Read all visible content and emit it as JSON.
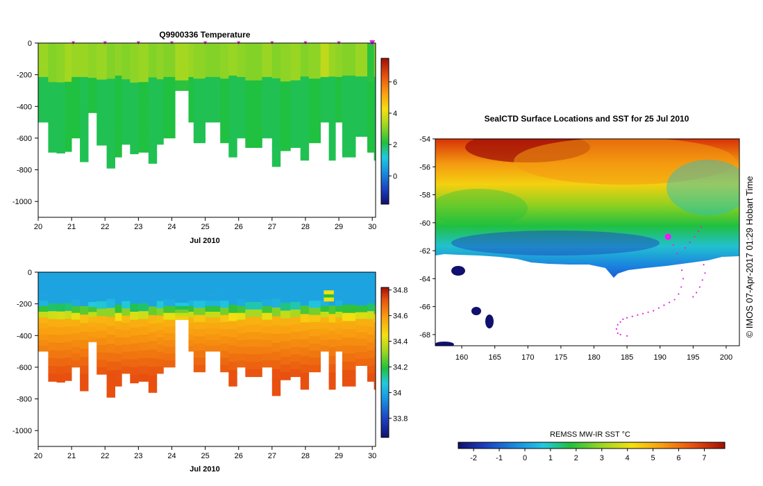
{
  "chart_data": [
    {
      "type": "heatmap",
      "title": "Q9900336  Temperature",
      "xlabel": "Jul 2010",
      "ylabel": "",
      "xlim": [
        20,
        30.1
      ],
      "ylim": [
        -1100,
        0
      ],
      "xticks": [
        20,
        21,
        22,
        23,
        24,
        25,
        26,
        27,
        28,
        29,
        30
      ],
      "yticks": [
        0,
        -200,
        -400,
        -600,
        -800,
        -1000
      ],
      "colorbar": {
        "min": -1.8,
        "max": 7.5,
        "ticks": [
          0,
          2,
          4,
          6
        ]
      },
      "profile_markers": [
        21.05,
        22.0,
        23.0,
        24.0,
        25.0,
        26.0,
        27.0,
        28.0,
        29.0,
        30.0
      ],
      "columns": [
        {
          "x0": 20.0,
          "x1": 20.3,
          "depth": 500,
          "surface": 3.2,
          "deep": 2.0
        },
        {
          "x0": 20.3,
          "x1": 20.55,
          "depth": 690,
          "surface": 3.0,
          "deep": 2.0
        },
        {
          "x0": 20.55,
          "x1": 20.8,
          "depth": 695,
          "surface": 3.1,
          "deep": 2.0
        },
        {
          "x0": 20.8,
          "x1": 21.0,
          "depth": 685,
          "surface": 3.3,
          "deep": 2.1
        },
        {
          "x0": 21.0,
          "x1": 21.25,
          "depth": 600,
          "surface": 3.2,
          "deep": 2.1
        },
        {
          "x0": 21.25,
          "x1": 21.5,
          "depth": 750,
          "surface": 3.2,
          "deep": 2.0
        },
        {
          "x0": 21.5,
          "x1": 21.75,
          "depth": 440,
          "surface": 3.1,
          "deep": 2.1
        },
        {
          "x0": 21.75,
          "x1": 22.05,
          "depth": 645,
          "surface": 3.2,
          "deep": 2.0
        },
        {
          "x0": 22.05,
          "x1": 22.3,
          "depth": 790,
          "surface": 3.0,
          "deep": 2.0
        },
        {
          "x0": 22.3,
          "x1": 22.5,
          "depth": 720,
          "surface": 3.1,
          "deep": 2.1
        },
        {
          "x0": 22.5,
          "x1": 22.75,
          "depth": 640,
          "surface": 3.0,
          "deep": 2.0
        },
        {
          "x0": 22.75,
          "x1": 23.0,
          "depth": 700,
          "surface": 3.1,
          "deep": 2.0
        },
        {
          "x0": 23.0,
          "x1": 23.3,
          "depth": 690,
          "surface": 3.2,
          "deep": 2.1
        },
        {
          "x0": 23.3,
          "x1": 23.55,
          "depth": 760,
          "surface": 3.0,
          "deep": 2.0
        },
        {
          "x0": 23.55,
          "x1": 23.75,
          "depth": 640,
          "surface": 3.1,
          "deep": 2.0
        },
        {
          "x0": 23.75,
          "x1": 24.1,
          "depth": 600,
          "surface": 3.0,
          "deep": 2.1
        },
        {
          "x0": 24.1,
          "x1": 24.5,
          "depth": 300,
          "surface": 3.3,
          "deep": 2.2
        },
        {
          "x0": 24.5,
          "x1": 24.65,
          "depth": 500,
          "surface": 3.2,
          "deep": 2.1
        },
        {
          "x0": 24.65,
          "x1": 25.0,
          "depth": 630,
          "surface": 3.1,
          "deep": 2.0
        },
        {
          "x0": 25.0,
          "x1": 25.45,
          "depth": 500,
          "surface": 3.0,
          "deep": 2.0
        },
        {
          "x0": 25.45,
          "x1": 25.7,
          "depth": 630,
          "surface": 3.1,
          "deep": 2.1
        },
        {
          "x0": 25.7,
          "x1": 25.95,
          "depth": 720,
          "surface": 3.2,
          "deep": 2.0
        },
        {
          "x0": 25.95,
          "x1": 26.2,
          "depth": 600,
          "surface": 3.1,
          "deep": 2.0
        },
        {
          "x0": 26.2,
          "x1": 26.7,
          "depth": 660,
          "surface": 3.0,
          "deep": 2.1
        },
        {
          "x0": 26.7,
          "x1": 27.0,
          "depth": 600,
          "surface": 3.2,
          "deep": 2.0
        },
        {
          "x0": 27.0,
          "x1": 27.25,
          "depth": 780,
          "surface": 3.0,
          "deep": 2.0
        },
        {
          "x0": 27.25,
          "x1": 27.55,
          "depth": 680,
          "surface": 3.1,
          "deep": 2.1
        },
        {
          "x0": 27.55,
          "x1": 27.85,
          "depth": 660,
          "surface": 3.2,
          "deep": 2.0
        },
        {
          "x0": 27.85,
          "x1": 28.1,
          "depth": 740,
          "surface": 3.0,
          "deep": 2.0
        },
        {
          "x0": 28.1,
          "x1": 28.45,
          "depth": 630,
          "surface": 3.1,
          "deep": 2.1
        },
        {
          "x0": 28.45,
          "x1": 28.7,
          "depth": 500,
          "surface": 3.6,
          "deep": 2.0
        },
        {
          "x0": 28.7,
          "x1": 28.9,
          "depth": 740,
          "surface": 3.2,
          "deep": 2.0
        },
        {
          "x0": 28.9,
          "x1": 29.1,
          "depth": 500,
          "surface": 3.1,
          "deep": 2.1
        },
        {
          "x0": 29.1,
          "x1": 29.5,
          "depth": 720,
          "surface": 3.0,
          "deep": 2.0
        },
        {
          "x0": 29.5,
          "x1": 29.85,
          "depth": 590,
          "surface": 3.2,
          "deep": 2.0
        },
        {
          "x0": 29.85,
          "x1": 30.05,
          "depth": 690,
          "surface": 2.2,
          "deep": 2.1
        },
        {
          "x0": 30.05,
          "x1": 30.1,
          "depth": 740,
          "surface": 3.0,
          "deep": 2.0
        }
      ]
    },
    {
      "type": "heatmap",
      "title": "",
      "xlabel": "Jul 2010",
      "ylabel": "",
      "xlim": [
        20,
        30.1
      ],
      "ylim": [
        -1100,
        0
      ],
      "xticks": [
        20,
        21,
        22,
        23,
        24,
        25,
        26,
        27,
        28,
        29,
        30
      ],
      "yticks": [
        0,
        -200,
        -400,
        -600,
        -800,
        -1000
      ],
      "colorbar": {
        "min": 33.65,
        "max": 34.82,
        "ticks": [
          33.8,
          34.0,
          34.2,
          34.4,
          34.6,
          34.8
        ]
      }
    },
    {
      "type": "heatmap",
      "title": "SealCTD Surface Locations and SST for 25 Jul 2010",
      "xlabel": "",
      "ylabel": "",
      "xlim": [
        156,
        202
      ],
      "ylim": [
        -68.8,
        -54
      ],
      "xticks": [
        160,
        165,
        170,
        175,
        180,
        185,
        190,
        195,
        200
      ],
      "yticks": [
        -54,
        -56,
        -58,
        -60,
        -62,
        -64,
        -66,
        -68
      ],
      "colorbar": {
        "label": "REMSS MW-IR SST °C",
        "min": -2.6,
        "max": 7.8,
        "ticks": [
          -2,
          -1,
          0,
          1,
          2,
          3,
          4,
          5,
          6,
          7
        ]
      },
      "track_points": [
        [
          191.2,
          -61.0
        ],
        [
          192.0,
          -61.6
        ],
        [
          192.6,
          -62.2
        ],
        [
          193.0,
          -62.8
        ],
        [
          193.3,
          -63.4
        ],
        [
          193.5,
          -64.0
        ],
        [
          193.2,
          -64.6
        ],
        [
          192.8,
          -65.1
        ],
        [
          192.2,
          -65.5
        ],
        [
          191.4,
          -65.7
        ],
        [
          190.6,
          -65.9
        ],
        [
          189.8,
          -66.1
        ],
        [
          189.0,
          -66.3
        ],
        [
          188.2,
          -66.4
        ],
        [
          187.4,
          -66.5
        ],
        [
          186.6,
          -66.6
        ],
        [
          185.8,
          -66.7
        ],
        [
          185.0,
          -66.8
        ],
        [
          184.4,
          -66.9
        ],
        [
          184.0,
          -67.1
        ],
        [
          183.6,
          -67.3
        ],
        [
          183.4,
          -67.6
        ],
        [
          183.6,
          -67.9
        ],
        [
          184.0,
          -68.0
        ],
        [
          185.0,
          -68.1
        ],
        [
          193.8,
          -61.8
        ],
        [
          194.5,
          -61.4
        ],
        [
          195.2,
          -61.0
        ],
        [
          195.8,
          -60.6
        ],
        [
          196.2,
          -60.3
        ],
        [
          196.6,
          -63.0
        ],
        [
          196.8,
          -63.6
        ],
        [
          196.4,
          -64.1
        ],
        [
          196.0,
          -64.6
        ],
        [
          195.5,
          -65.0
        ],
        [
          195.0,
          -65.3
        ]
      ],
      "highlight_point": [
        191.2,
        -61.0
      ]
    }
  ],
  "credit": "© IMOS 07-Apr-2017 01:29 Hobart Time"
}
